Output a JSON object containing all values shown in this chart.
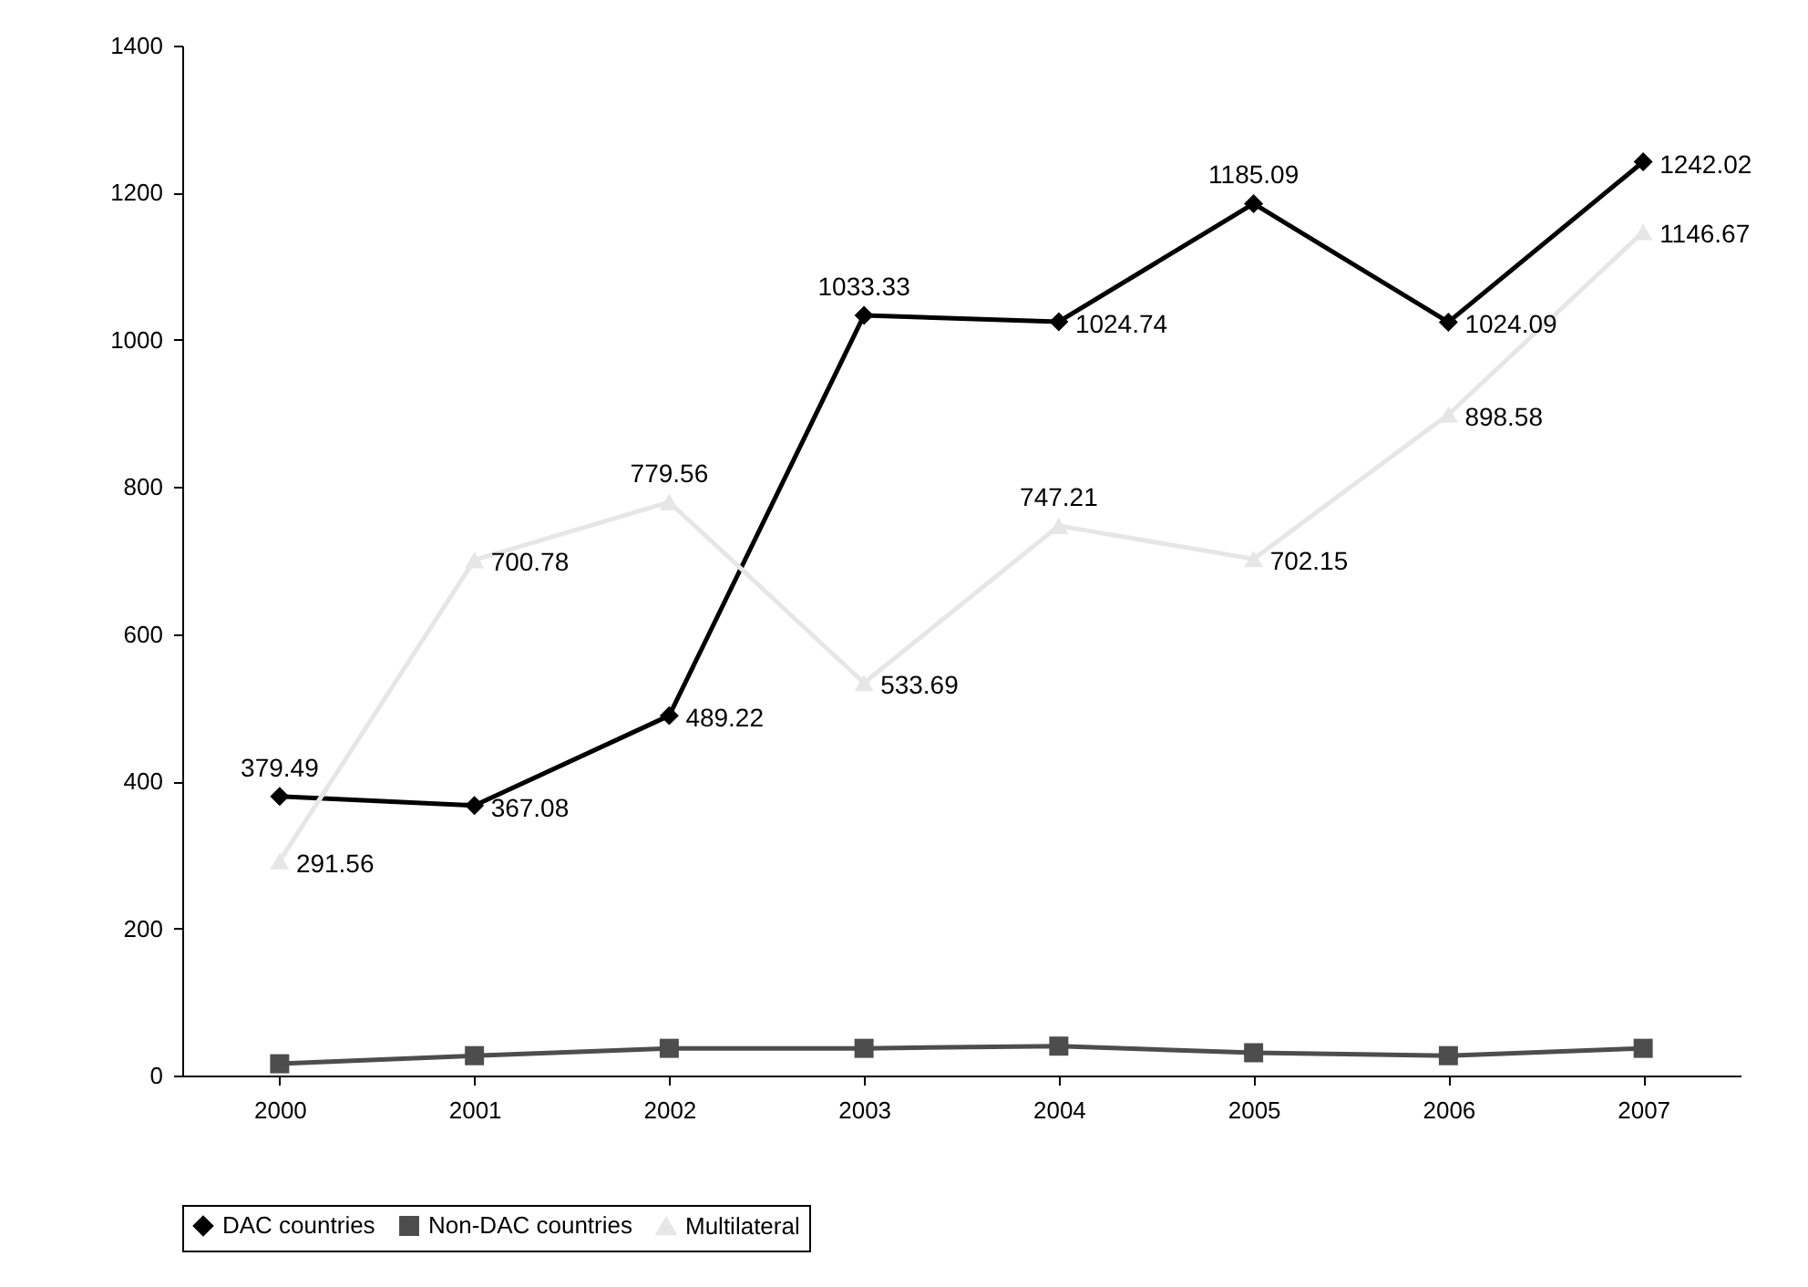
{
  "chart_data": {
    "type": "line",
    "categories": [
      "2000",
      "2001",
      "2002",
      "2003",
      "2004",
      "2005",
      "2006",
      "2007"
    ],
    "ylim": [
      0,
      1400
    ],
    "yticks": [
      0,
      200,
      400,
      600,
      800,
      1000,
      1200,
      1400
    ],
    "grid": false,
    "legend": "bottom",
    "series": [
      {
        "name": "DAC countries",
        "color": "#000000",
        "marker": "diamond",
        "values": [
          379.49,
          367.08,
          489.22,
          1033.33,
          1024.74,
          1185.09,
          1024.09,
          1242.02
        ],
        "value_labels": [
          "379.49",
          "367.08",
          "489.22",
          "1033.33",
          "1024.74",
          "1185.09",
          "1024.09",
          "1242.02"
        ]
      },
      {
        "name": "Non-DAC countries",
        "color": "#4d4d4d",
        "marker": "square",
        "values": [
          16,
          27,
          37,
          37,
          40,
          31,
          27,
          37
        ]
      },
      {
        "name": "Multilateral",
        "color": "#e6e6e6",
        "marker": "triangle",
        "values": [
          291.56,
          700.78,
          779.56,
          533.69,
          747.21,
          702.15,
          898.58,
          1146.67
        ],
        "value_labels": [
          "291.56",
          "700.78",
          "779.56",
          "533.69",
          "747.21",
          "702.15",
          "898.58",
          "1146.67"
        ]
      }
    ]
  }
}
